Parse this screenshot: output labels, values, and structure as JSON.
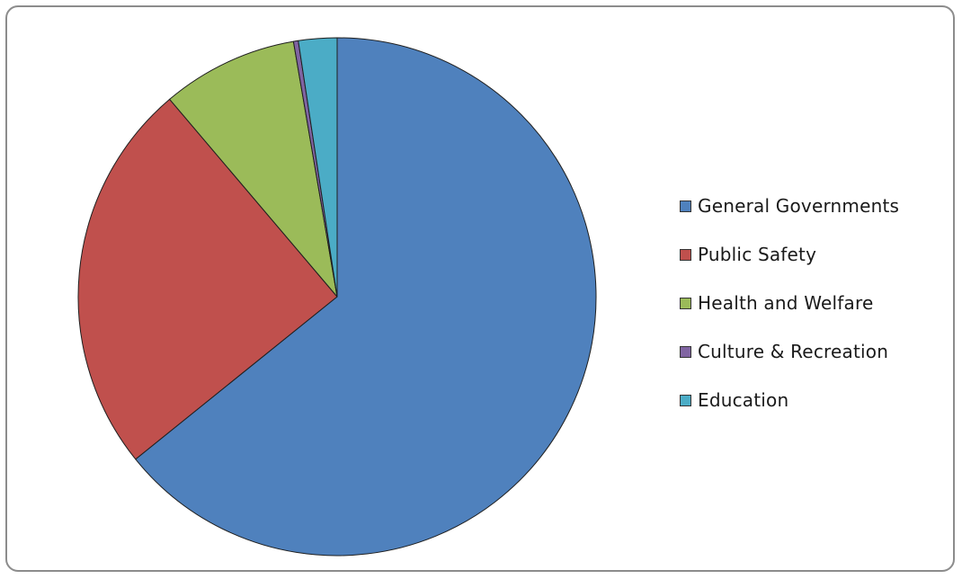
{
  "chart_data": {
    "type": "pie",
    "title": "",
    "categories": [
      "General Governments",
      "Public Safety",
      "Health and Welfare",
      "Culture & Recreation",
      "Education"
    ],
    "values": [
      64.2,
      24.6,
      8.5,
      0.3,
      2.4
    ],
    "colors": [
      "#4F81BD",
      "#C0504D",
      "#9BBB59",
      "#8064A2",
      "#4BACC6"
    ],
    "start_angle_deg": 0,
    "direction": "clockwise",
    "legend": {
      "position": "right",
      "items": [
        {
          "label": "General Governments",
          "color": "#4F81BD"
        },
        {
          "label": "Public Safety",
          "color": "#C0504D"
        },
        {
          "label": "Health and Welfare",
          "color": "#9BBB59"
        },
        {
          "label": "Culture & Recreation",
          "color": "#8064A2"
        },
        {
          "label": "Education",
          "color": "#4BACC6"
        }
      ]
    }
  }
}
